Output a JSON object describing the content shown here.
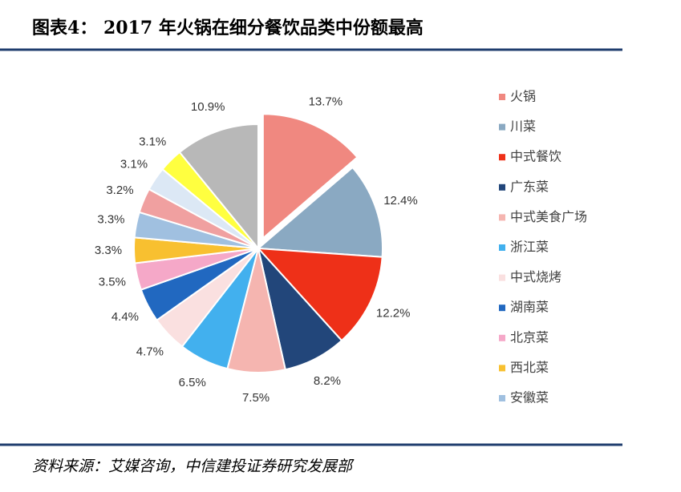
{
  "chart_data": {
    "type": "pie",
    "title": "图表4：  2017 年火锅在细分餐饮品类中份额最高",
    "source": "资料来源：艾媒咨询，中信建投证券研究发展部",
    "categories": [
      "火锅",
      "川菜",
      "中式餐饮",
      "广东菜",
      "中式美食广场",
      "浙江菜",
      "中式烧烤",
      "湖南菜",
      "北京菜",
      "西北菜",
      "安徽菜",
      null,
      null,
      null,
      null
    ],
    "values": [
      13.7,
      12.4,
      12.2,
      8.2,
      7.5,
      6.5,
      4.7,
      4.4,
      3.5,
      3.3,
      3.3,
      3.2,
      3.1,
      3.1,
      10.9
    ],
    "value_labels": [
      "13.7%",
      "12.4%",
      "12.2%",
      "8.2%",
      "7.5%",
      "6.5%",
      "4.7%",
      "4.4%",
      "3.5%",
      "3.3%",
      "3.3%",
      "3.2%",
      "3.1%",
      "3.1%",
      "10.9%"
    ],
    "colors": [
      "#f08880",
      "#8aa9c2",
      "#ee3018",
      "#22467a",
      "#f5b5b0",
      "#42b0ee",
      "#fae0e0",
      "#2168c0",
      "#f5a8c8",
      "#f8c030",
      "#a0c0e0",
      "#f0a0a0",
      "#dce8f5",
      "#ffff40",
      "#b8b8b8"
    ],
    "legend": "right"
  }
}
